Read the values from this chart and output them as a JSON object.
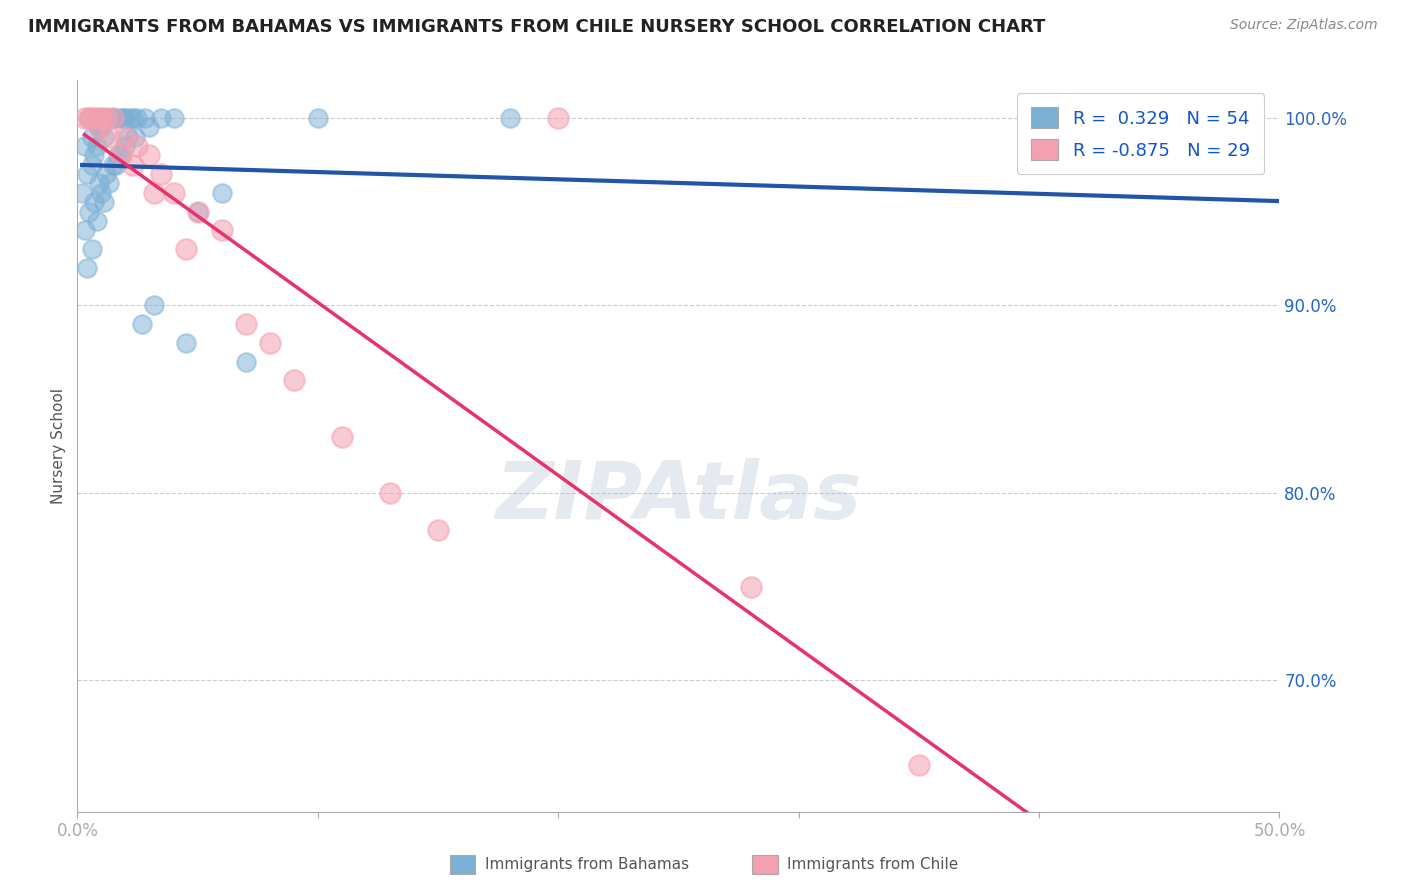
{
  "title": "IMMIGRANTS FROM BAHAMAS VS IMMIGRANTS FROM CHILE NURSERY SCHOOL CORRELATION CHART",
  "source": "Source: ZipAtlas.com",
  "xlabel_bottom": [
    "Immigrants from Bahamas",
    "Immigrants from Chile"
  ],
  "ylabel": "Nursery School",
  "xlim": [
    0.0,
    50.0
  ],
  "ylim": [
    63.0,
    102.0
  ],
  "x_ticks": [
    0.0,
    10.0,
    20.0,
    30.0,
    40.0,
    50.0
  ],
  "y_ticks": [
    70.0,
    80.0,
    90.0,
    100.0
  ],
  "x_tick_labels": [
    "0.0%",
    "",
    "",
    "",
    "",
    "50.0%"
  ],
  "y_tick_labels": [
    "70.0%",
    "80.0%",
    "90.0%",
    "100.0%"
  ],
  "bahamas_color": "#7BAFD4",
  "chile_color": "#F4A0B0",
  "bahamas_line_color": "#2255AA",
  "chile_line_color": "#E8336A",
  "bahamas_R": 0.329,
  "bahamas_N": 54,
  "chile_R": -0.875,
  "chile_N": 29,
  "legend_text_color": "#1155CC",
  "watermark": "ZIPAtlas",
  "watermark_color": "#AABBD0",
  "background_color": "#FFFFFF",
  "grid_color": "#CCCCCC",
  "title_color": "#222222",
  "axis_label_color": "#555555",
  "ytick_color": "#2266CC",
  "bahamas_x": [
    0.5,
    0.8,
    1.0,
    1.2,
    0.3,
    0.6,
    0.9,
    1.5,
    2.0,
    2.5,
    0.4,
    0.7,
    1.1,
    1.3,
    1.8,
    2.2,
    0.2,
    0.6,
    0.8,
    1.0,
    1.4,
    1.6,
    1.9,
    2.3,
    0.5,
    0.9,
    1.2,
    1.7,
    2.1,
    2.8,
    0.3,
    0.7,
    1.0,
    1.5,
    2.0,
    3.0,
    3.5,
    4.0,
    5.0,
    6.0,
    0.4,
    0.6,
    0.8,
    1.1,
    1.3,
    1.6,
    1.8,
    2.4,
    2.7,
    3.2,
    4.5,
    7.0,
    10.0,
    18.0
  ],
  "bahamas_y": [
    100.0,
    100.0,
    100.0,
    100.0,
    98.5,
    99.0,
    99.5,
    100.0,
    100.0,
    100.0,
    97.0,
    98.0,
    99.0,
    100.0,
    100.0,
    100.0,
    96.0,
    97.5,
    98.5,
    99.5,
    100.0,
    100.0,
    100.0,
    100.0,
    95.0,
    96.5,
    97.0,
    98.0,
    99.0,
    100.0,
    94.0,
    95.5,
    96.0,
    97.5,
    98.5,
    99.5,
    100.0,
    100.0,
    95.0,
    96.0,
    92.0,
    93.0,
    94.5,
    95.5,
    96.5,
    97.5,
    98.0,
    99.0,
    89.0,
    90.0,
    88.0,
    87.0,
    100.0,
    100.0
  ],
  "chile_x": [
    0.3,
    0.5,
    0.8,
    1.0,
    1.2,
    1.5,
    2.0,
    2.5,
    3.0,
    3.5,
    4.0,
    5.0,
    6.0,
    0.6,
    0.9,
    1.3,
    1.8,
    2.3,
    3.2,
    4.5,
    7.0,
    8.0,
    9.0,
    11.0,
    13.0,
    15.0,
    20.0,
    28.0,
    35.0
  ],
  "chile_y": [
    100.0,
    100.0,
    100.0,
    100.0,
    100.0,
    100.0,
    99.0,
    98.5,
    98.0,
    97.0,
    96.0,
    95.0,
    94.0,
    100.0,
    99.5,
    99.0,
    98.0,
    97.5,
    96.0,
    93.0,
    89.0,
    88.0,
    86.0,
    83.0,
    80.0,
    78.0,
    100.0,
    75.0,
    65.5
  ]
}
